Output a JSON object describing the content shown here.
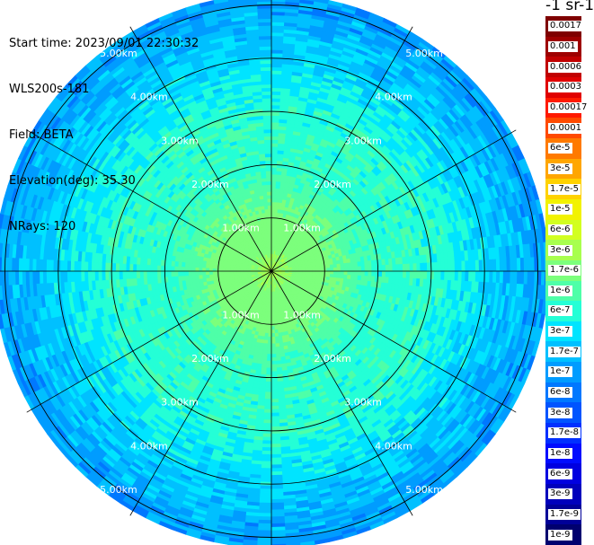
{
  "header": {
    "start_time": "Start time: 2023/09/01 22:30:32",
    "instrument": "WLS200s-181",
    "field": "Field: BETA",
    "elevation": "Elevation(deg): 35.30",
    "nrays": "NRays: 120"
  },
  "colorbar": {
    "unit_label": "-1 sr-1",
    "labels": [
      "0.0017",
      "0.001",
      "0.0006",
      "0.0003",
      "0.00017",
      "0.0001",
      "6e-5",
      "3e-5",
      "1.7e-5",
      "1e-5",
      "6e-6",
      "3e-6",
      "1.7e-6",
      "1e-6",
      "6e-7",
      "3e-7",
      "1.7e-7",
      "1e-7",
      "6e-8",
      "3e-8",
      "1.7e-8",
      "1e-8",
      "6e-9",
      "3e-9",
      "1.7e-9",
      "1e-9"
    ],
    "colors": [
      "#7f0000",
      "#9e0000",
      "#c10000",
      "#e00000",
      "#ff1a00",
      "#ff4a00",
      "#ff7a00",
      "#ffa600",
      "#ffd200",
      "#f2f200",
      "#d2ff20",
      "#a8ff4e",
      "#7cff7c",
      "#4effa8",
      "#24ffd6",
      "#00e4ff",
      "#00c0ff",
      "#009cff",
      "#0078ff",
      "#0054ff",
      "#0030ff",
      "#000cff",
      "#0000e0",
      "#0000bc",
      "#000098",
      "#00006f"
    ]
  },
  "chart_data": {
    "type": "heatmap",
    "projection": "polar-ppi",
    "field": "BETA",
    "range_rings_km": [
      1,
      2,
      3,
      4,
      5
    ],
    "ring_labels": [
      "1.00km",
      "2.00km",
      "3.00km",
      "4.00km",
      "5.00km"
    ],
    "radial_spokes_deg": [
      0,
      30,
      60,
      90,
      120,
      150,
      180,
      210,
      240,
      270,
      300,
      330
    ],
    "max_range_km": 5.2,
    "grid": true,
    "value_profile_by_range": [
      {
        "range_km": 0.0,
        "value": 3e-06
      },
      {
        "range_km": 0.5,
        "value": 1.7e-06
      },
      {
        "range_km": 1.0,
        "value": 1.7e-06
      },
      {
        "range_km": 1.5,
        "value": 1e-06
      },
      {
        "range_km": 2.0,
        "value": 6e-07
      },
      {
        "range_km": 3.0,
        "value": 6e-07
      },
      {
        "range_km": 3.8,
        "value": 3e-07
      },
      {
        "range_km": 4.5,
        "value": 1.7e-07
      },
      {
        "range_km": 5.2,
        "value": 1e-07
      }
    ]
  }
}
